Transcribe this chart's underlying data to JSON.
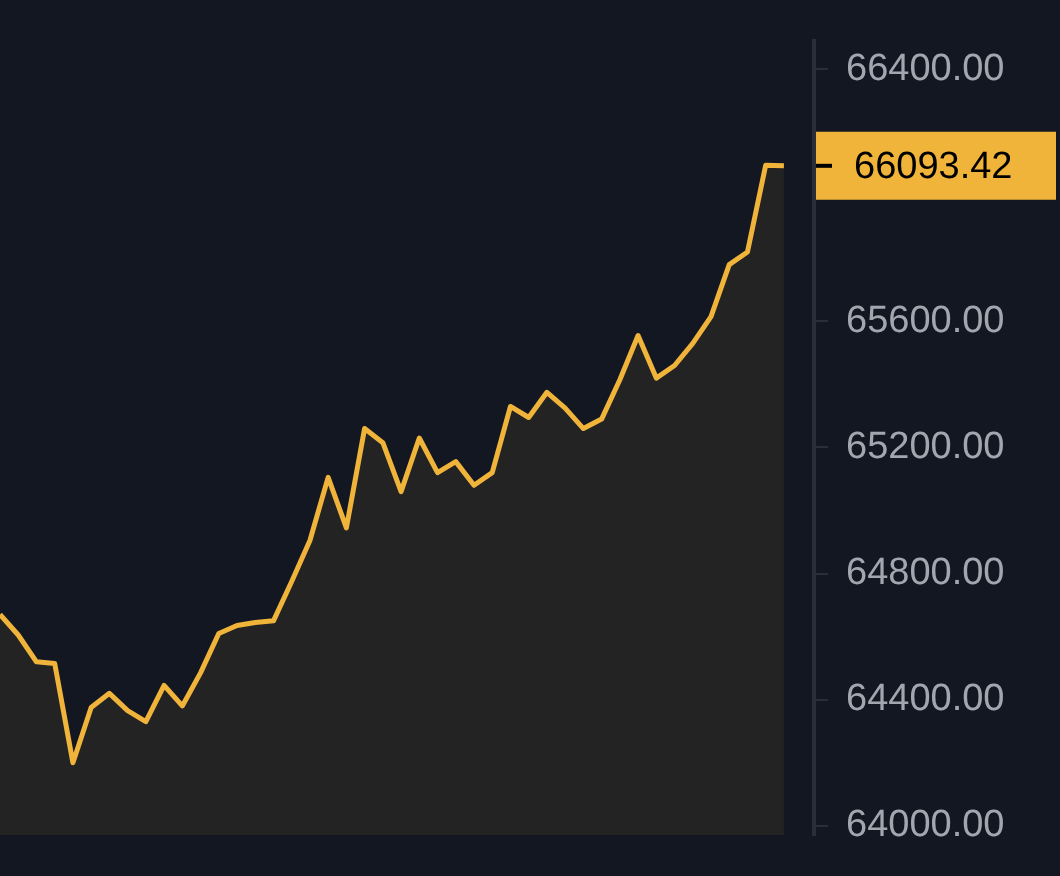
{
  "chart_data": {
    "type": "area",
    "categories": [
      null,
      null,
      null,
      null,
      null,
      null,
      null,
      null,
      null,
      null,
      null,
      null,
      null,
      null,
      null,
      null,
      null,
      null,
      null,
      null,
      null,
      null,
      null,
      null,
      null,
      null,
      null,
      null,
      null,
      null,
      null,
      null,
      null,
      null,
      null,
      null,
      null,
      null,
      null,
      null,
      null,
      null,
      null,
      null
    ],
    "series": [
      {
        "color": "#f0b43a",
        "values": [
          64670,
          64605,
          64520,
          64515,
          64200,
          64375,
          64420,
          64365,
          64330,
          64445,
          64380,
          64485,
          64610,
          64635,
          64645,
          64650,
          64775,
          64905,
          65105,
          64945,
          65260,
          65215,
          65060,
          65230,
          65120,
          65155,
          65080,
          65120,
          65330,
          65295,
          65375,
          65325,
          65260,
          65290,
          65415,
          65555,
          65420,
          65460,
          65530,
          65615,
          65780,
          65820,
          66095,
          66093.42
        ]
      }
    ],
    "ylim": [
      63970,
      66490
    ],
    "yticks": [
      {
        "value": 64000,
        "label": "64000.00"
      },
      {
        "value": 64400,
        "label": "64400.00"
      },
      {
        "value": 64800,
        "label": "64800.00"
      },
      {
        "value": 65200,
        "label": "65200.00"
      },
      {
        "value": 65600,
        "label": "65600.00"
      },
      {
        "value": 66000,
        "label": null
      },
      {
        "value": 66400,
        "label": "66400.00"
      }
    ],
    "tick_labels": "y",
    "grid": false,
    "legend": false,
    "marker": "none",
    "annotations": [
      "66093.42"
    ]
  }
}
